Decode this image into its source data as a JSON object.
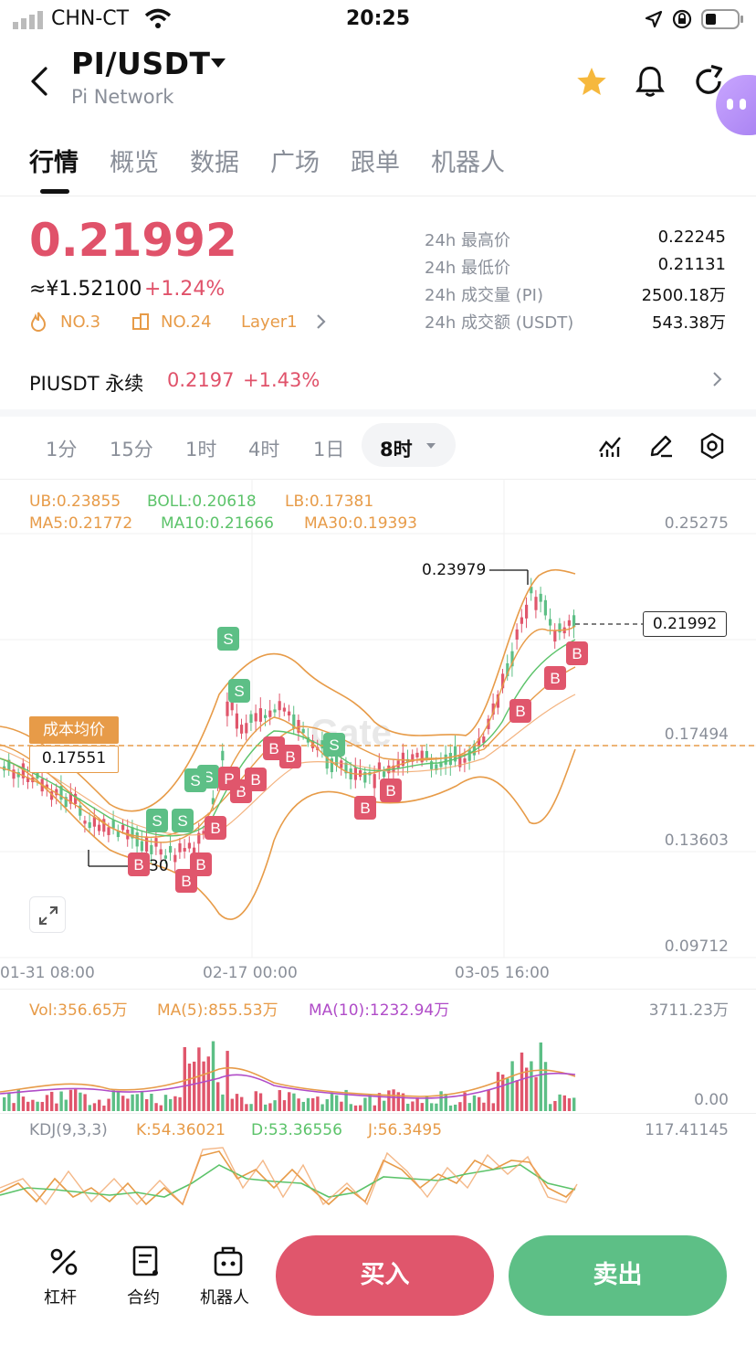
{
  "status_bar": {
    "carrier": "CHN-CT",
    "time": "20:25"
  },
  "header": {
    "pair": "PI/USDT",
    "subtitle": "Pi Network"
  },
  "tabs": [
    "行情",
    "概览",
    "数据",
    "广场",
    "跟单",
    "机器人"
  ],
  "price": {
    "last": "0.21992",
    "cny": "≈¥1.52100",
    "change": "+1.24%",
    "rank_hot": "NO.3",
    "rank_cap": "NO.24",
    "category": "Layer1"
  },
  "stats": [
    {
      "label": "24h 最高价",
      "value": "0.22245"
    },
    {
      "label": "24h 最低价",
      "value": "0.21131"
    },
    {
      "label": "24h 成交量 (PI)",
      "value": "2500.18万"
    },
    {
      "label": "24h 成交额 (USDT)",
      "value": "543.38万"
    }
  ],
  "perpetual": {
    "label": "PIUSDT 永续",
    "price": "0.2197",
    "change": "+1.43%"
  },
  "intervals": [
    "1分",
    "15分",
    "1时",
    "4时",
    "1日"
  ],
  "interval_active": "8时",
  "colors": {
    "up": "#5dbf86",
    "down": "#e0566c",
    "accent": "#e79b48"
  },
  "chart": {
    "boll": {
      "ub": "UB:0.23855",
      "boll": "BOLL:0.20618",
      "lb": "LB:0.17381"
    },
    "ma": {
      "ma5": "MA5:0.21772",
      "ma10": "MA10:0.21666",
      "ma30": "MA30:0.19393"
    },
    "y_ticks": [
      "0.25275",
      "0.17494",
      "0.13603",
      "0.09712"
    ],
    "x_ticks": [
      "01-31 08:00",
      "02-17 00:00",
      "03-05 16:00"
    ],
    "high_marker": "0.23979",
    "low_marker_partial": "30",
    "current_price_tag": "0.21992",
    "cost_avg_label": "成本均价",
    "cost_avg_value": "0.17551",
    "trade_markers": {
      "buy": "B",
      "sell": "S",
      "partial": "P"
    }
  },
  "volume": {
    "vol": "Vol:356.65万",
    "ma5": "MA(5):855.53万",
    "ma10": "MA(10):1232.94万",
    "y_top": "3711.23万",
    "y_bottom": "0.00"
  },
  "kdj": {
    "label": "KDJ(9,3,3)",
    "k": "K:54.36021",
    "d": "D:53.36556",
    "j": "J:56.3495",
    "y_top": "117.41145"
  },
  "bottom_nav": {
    "items": [
      "杠杆",
      "合约",
      "机器人"
    ],
    "buy": "买入",
    "sell": "卖出"
  }
}
